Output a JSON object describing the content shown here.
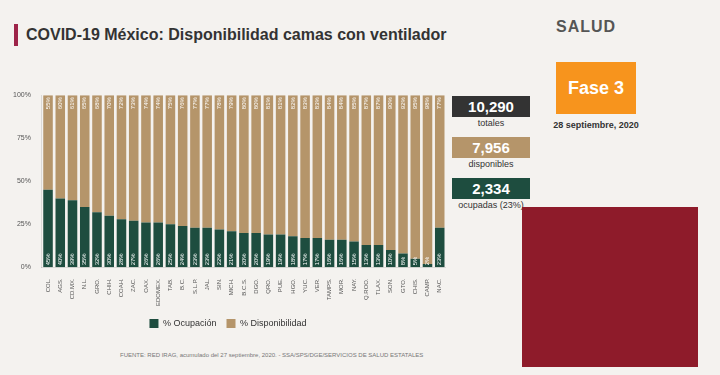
{
  "chart_data": {
    "type": "bar",
    "stacked": true,
    "title": "COVID-19 México: Disponibilidad camas con ventilador",
    "categories": [
      "COL.",
      "AGS.",
      "CD.MX.",
      "N.L.",
      "GRO.",
      "CHIH.",
      "COAH.",
      "ZAC.",
      "OAX.",
      "EDOMEX.",
      "TAB.",
      "B.C.",
      "S.L.P.",
      "JAL.",
      "SIN.",
      "MICH.",
      "B.C.S.",
      "DGO.",
      "QRO.",
      "PUE.",
      "HGO.",
      "YUC.",
      "VER.",
      "TAMPS.",
      "MOR.",
      "NAY.",
      "Q.ROO.",
      "TLAX.",
      "SON.",
      "GTO.",
      "CHIS.",
      "CAMP.",
      "NAC."
    ],
    "series": [
      {
        "name": "% Ocupación",
        "color": "#1e4d3f",
        "values": [
          45,
          40,
          39,
          35,
          32,
          30,
          28,
          27,
          26,
          26,
          25,
          24,
          23,
          23,
          22,
          21,
          20,
          20,
          19,
          19,
          18,
          17,
          17,
          16,
          16,
          15,
          13,
          13,
          10,
          8,
          5,
          2,
          23
        ],
        "value_labels": [
          "45%",
          "40%",
          "39%",
          "35%",
          "32%",
          "30%",
          "28%",
          "27%",
          "26%",
          "26%",
          "25%",
          "24%",
          "23%",
          "23%",
          "22%",
          "21%",
          "20%",
          "20%",
          "19%",
          "19%",
          "18%",
          "17%",
          "17%",
          "16%",
          "16%",
          "15%",
          "13%",
          "13%",
          "10%",
          "8%",
          "5%",
          "2%",
          "23%"
        ]
      },
      {
        "name": "% Disponibilidad",
        "color": "#b5956a",
        "values": [
          55,
          60,
          61,
          65,
          68,
          70,
          72,
          73,
          74,
          74,
          75,
          76,
          77,
          77,
          78,
          79,
          80,
          80,
          81,
          81,
          82,
          83,
          83,
          84,
          84,
          85,
          87,
          87,
          90,
          92,
          95,
          98,
          77
        ],
        "value_labels": [
          "55%",
          "60%",
          "61%",
          "65%",
          "68%",
          "70%",
          "72%",
          "73%",
          "74%",
          "74%",
          "75%",
          "76%",
          "77%",
          "77%",
          "78%",
          "79%",
          "80%",
          "80%",
          "81%",
          "81%",
          "82%",
          "83%",
          "83%",
          "84%",
          "84%",
          "85%",
          "87%",
          "87%",
          "90%",
          "92%",
          "95%",
          "98%",
          "77%"
        ]
      }
    ],
    "ylim": [
      0,
      100
    ],
    "yticks": [
      {
        "value": 0,
        "label": "0%"
      },
      {
        "value": 25,
        "label": "25%"
      },
      {
        "value": 50,
        "label": "50%"
      },
      {
        "value": 75,
        "label": "75%"
      },
      {
        "value": 100,
        "label": "100%"
      }
    ],
    "grid": false,
    "legend": "bottom",
    "data_labels": true
  },
  "page": {
    "logo": "SALUD",
    "phase": "Fase 3",
    "date": "28 septiembre, 2020",
    "totals": [
      {
        "number": "10,290",
        "label": "totales",
        "color": "#333333"
      },
      {
        "number": "7,956",
        "label": "disponibles",
        "color": "#b5956a"
      },
      {
        "number": "2,334",
        "label": "ocupadas (23%)",
        "color": "#1e4d3f"
      }
    ],
    "source": "FUENTE: RED IRAG, acumulado del 27 septiembre, 2020. - SSA/SPS/DGE/SERVICIOS DE SALUD ESTATALES"
  }
}
